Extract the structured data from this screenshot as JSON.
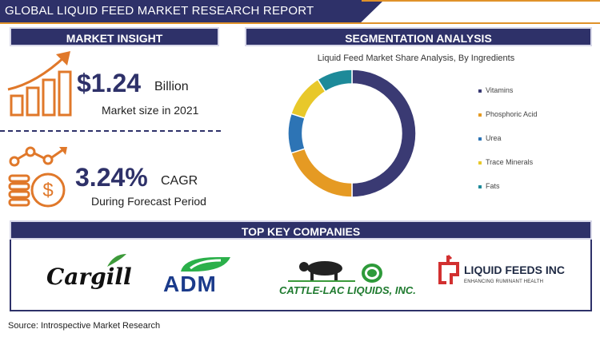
{
  "header": {
    "title": "GLOBAL LIQUID FEED MARKET RESEARCH REPORT"
  },
  "market_insight": {
    "heading": "MARKET INSIGHT",
    "market_size_value": "$1.24",
    "market_size_unit": "Billion",
    "market_size_caption": "Market size in 2021",
    "cagr_value": "3.24%",
    "cagr_unit": "CAGR",
    "cagr_caption": "During Forecast Period"
  },
  "segmentation": {
    "heading": "SEGMENTATION ANALYSIS"
  },
  "chart_data": {
    "type": "pie",
    "title": "Liquid Feed Market Share Analysis, By Ingredients",
    "categories": [
      "Vitamins",
      "Phosphoric Acid",
      "Urea",
      "Trace Minerals",
      "Fats"
    ],
    "values": [
      50,
      20,
      10,
      11,
      9
    ],
    "colors": [
      "#3a3a73",
      "#e59a23",
      "#2d74b5",
      "#e8c82a",
      "#1d8a99"
    ],
    "donut": true,
    "legend": "right"
  },
  "companies": {
    "heading": "TOP KEY COMPANIES",
    "cargill": "Cargill",
    "adm": "ADM",
    "cattle_lac": "CATTLE-LAC LIQUIDS, INC.",
    "liquid_feeds": "LIQUID FEEDS INC",
    "liquid_feeds_tagline": "ENHANCING RUMINANT HEALTH"
  },
  "footer": {
    "source": "Source: Introspective Market Research"
  },
  "colors": {
    "navy": "#2e3169",
    "orange": "#e0922a"
  }
}
